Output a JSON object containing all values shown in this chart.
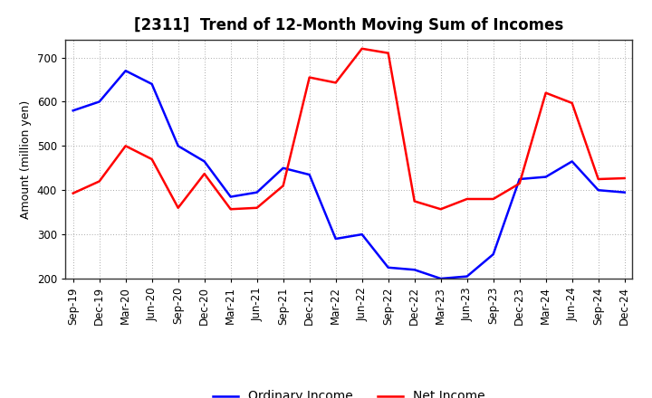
{
  "title": "[2311]  Trend of 12-Month Moving Sum of Incomes",
  "ylabel": "Amount (million yen)",
  "ylim": [
    200,
    740
  ],
  "yticks": [
    200,
    300,
    400,
    500,
    600,
    700
  ],
  "background_color": "#ffffff",
  "grid_color": "#aaaaaa",
  "x_labels": [
    "Sep-19",
    "Dec-19",
    "Mar-20",
    "Jun-20",
    "Sep-20",
    "Dec-20",
    "Mar-21",
    "Jun-21",
    "Sep-21",
    "Dec-21",
    "Mar-22",
    "Jun-22",
    "Sep-22",
    "Dec-22",
    "Mar-23",
    "Jun-23",
    "Sep-23",
    "Dec-23",
    "Mar-24",
    "Jun-24",
    "Sep-24",
    "Dec-24"
  ],
  "ordinary_income": [
    580,
    600,
    670,
    640,
    500,
    465,
    385,
    395,
    450,
    435,
    290,
    300,
    225,
    220,
    200,
    205,
    255,
    425,
    430,
    465,
    400,
    395
  ],
  "net_income": [
    393,
    420,
    500,
    470,
    360,
    437,
    357,
    360,
    410,
    655,
    643,
    720,
    710,
    375,
    357,
    380,
    380,
    415,
    620,
    597,
    425,
    427
  ],
  "ordinary_color": "#0000ff",
  "net_color": "#ff0000",
  "line_width": 1.8,
  "title_fontsize": 12,
  "ylabel_fontsize": 9,
  "tick_fontsize": 8.5
}
